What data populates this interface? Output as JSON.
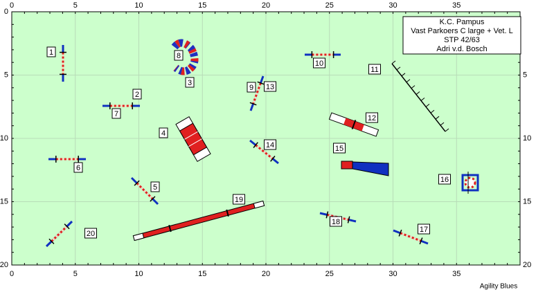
{
  "course": {
    "club": "K.C. Pampus",
    "title": "Vast Parkoers C large + Vet. L",
    "stp": "STP 42/63",
    "judge": "Adri v.d. Bosch"
  },
  "x_axis_labels": [
    "0",
    "5",
    "10",
    "15",
    "20",
    "25",
    "30",
    "35"
  ],
  "y_axis_labels": [
    "0",
    "5",
    "10",
    "15",
    "20"
  ],
  "obstacle_numbers": [
    "1",
    "2",
    "3",
    "4",
    "5",
    "6",
    "7",
    "8",
    "9",
    "10",
    "11",
    "12",
    "13",
    "14",
    "15",
    "16",
    "17",
    "18",
    "19",
    "20"
  ],
  "footer": "Agility Blues"
}
